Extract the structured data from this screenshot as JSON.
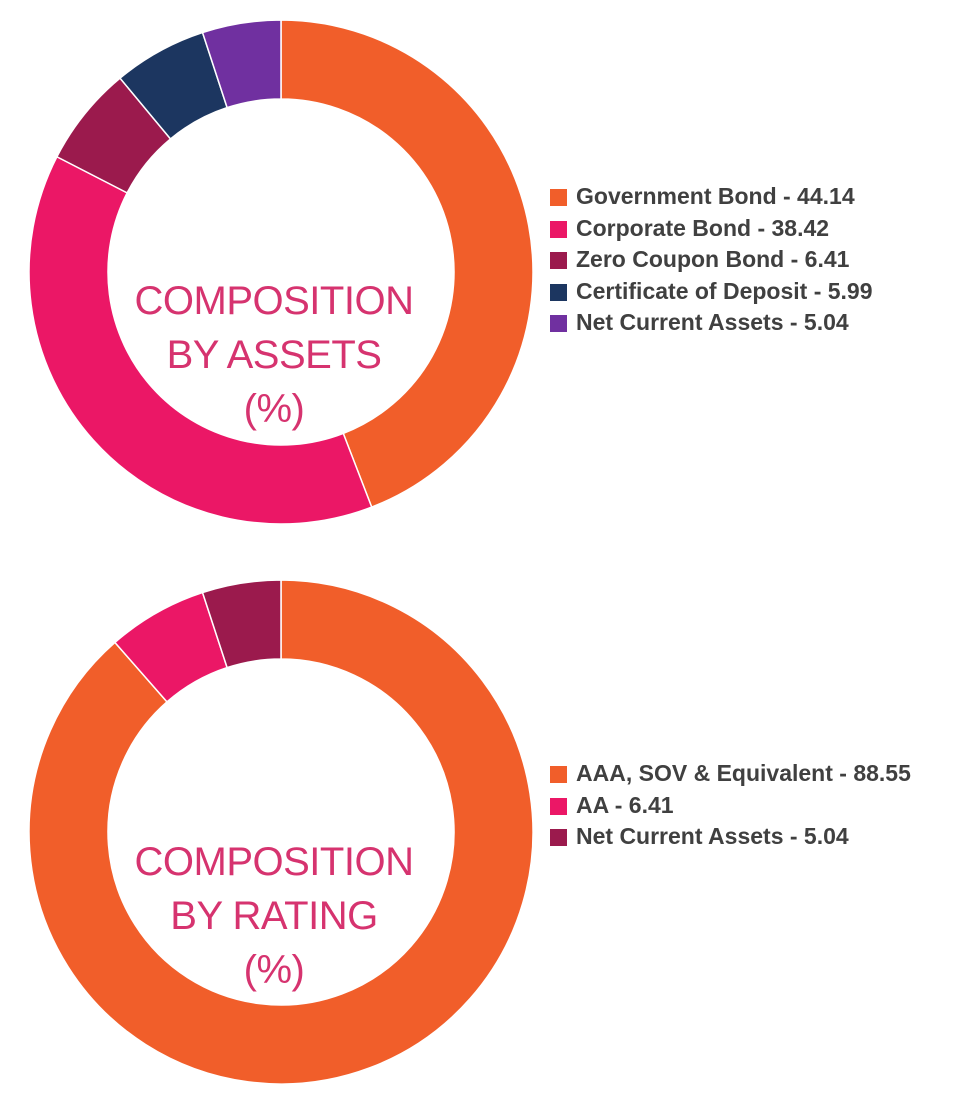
{
  "colors": {
    "title": "#d6336f",
    "legend_text": "#404040"
  },
  "chart_data": [
    {
      "type": "pie",
      "variant": "donut",
      "title_lines": [
        "COMPOSITION",
        "BY ASSETS",
        "(%)"
      ],
      "legend_position": "right",
      "slices": [
        {
          "label": "Government Bond - 44.14",
          "value": 44.14,
          "color": "#f15e2a"
        },
        {
          "label": "Corporate Bond - 38.42",
          "value": 38.42,
          "color": "#eb1766"
        },
        {
          "label": "Zero Coupon Bond - 6.41",
          "value": 6.41,
          "color": "#9b1a4d"
        },
        {
          "label": "Certificate of Deposit - 5.99",
          "value": 5.99,
          "color": "#1c3660"
        },
        {
          "label": "Net Current Assets - 5.04",
          "value": 5.04,
          "color": "#7030a0"
        }
      ]
    },
    {
      "type": "pie",
      "variant": "donut",
      "title_lines": [
        "COMPOSITION",
        "BY RATING",
        "(%)"
      ],
      "legend_position": "right",
      "slices": [
        {
          "label": "AAA, SOV & Equivalent - 88.55",
          "value": 88.55,
          "color": "#f15e2a"
        },
        {
          "label": "AA - 6.41",
          "value": 6.41,
          "color": "#eb1766"
        },
        {
          "label": "Net Current Assets - 5.04",
          "value": 5.04,
          "color": "#9b1a4d"
        }
      ]
    }
  ]
}
